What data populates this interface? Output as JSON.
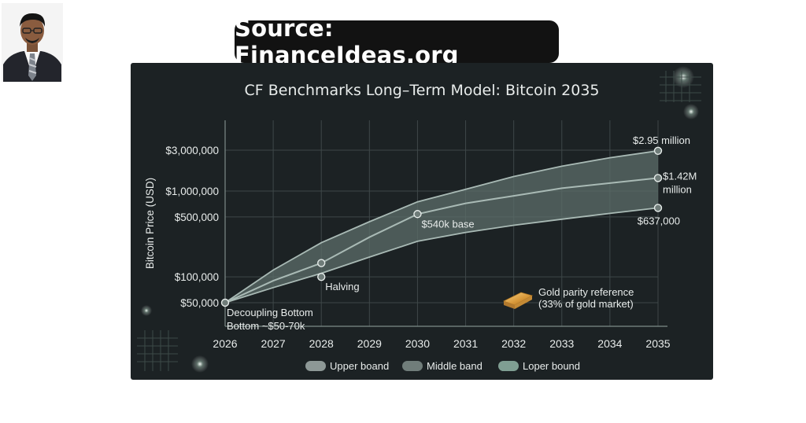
{
  "header": {
    "source_label": "Source: FinanceIdeas.org"
  },
  "chart_data": {
    "type": "area",
    "title": "CF Benchmarks Long–Term Model: Bitcoin 2035",
    "xlabel": "",
    "ylabel": "Bitcoin Price (USD)",
    "y_scale": "log",
    "x": [
      2026,
      2027,
      2028,
      2029,
      2030,
      2031,
      2032,
      2033,
      2034,
      2035
    ],
    "x_tick_labels": [
      "2026",
      "2027",
      "2028",
      "2029",
      "2030",
      "2031",
      "2032",
      "2033",
      "2034",
      "2035"
    ],
    "y_ticks": [
      50000,
      100000,
      500000,
      1000000,
      3000000
    ],
    "y_tick_labels": [
      "$50,000",
      "$100,000",
      "$500,000",
      "$1,000,000",
      "$3,000,000"
    ],
    "series": [
      {
        "name": "Upper boand",
        "values": [
          50000,
          120000,
          250000,
          440000,
          750000,
          1050000,
          1480000,
          1950000,
          2450000,
          2950000
        ]
      },
      {
        "name": "Middle band",
        "values": [
          50000,
          90000,
          145000,
          290000,
          540000,
          720000,
          880000,
          1080000,
          1240000,
          1420000
        ]
      },
      {
        "name": "Loper bound",
        "values": [
          50000,
          75000,
          110000,
          170000,
          260000,
          330000,
          400000,
          470000,
          550000,
          637000
        ]
      }
    ],
    "legend_position": "bottom",
    "grid": true,
    "colors": {
      "panel_bg": "#1c2224",
      "band_fill": "#5c6e6a",
      "line": "#a9bab5",
      "grid": "#3e4748",
      "text": "#e8eceb",
      "gold": "#d49a3c"
    },
    "annotations": [
      {
        "id": "start",
        "lines": [
          "Decoupling Bottom",
          "Bottom ~$50-70k"
        ],
        "x": 2026,
        "y": 50000
      },
      {
        "id": "halving",
        "lines": [
          "Halving"
        ],
        "x": 2028,
        "y": 100000
      },
      {
        "id": "halving-mid",
        "lines": [],
        "x": 2028,
        "y": 145000
      },
      {
        "id": "base",
        "lines": [
          "$540k base"
        ],
        "x": 2030,
        "y": 540000
      },
      {
        "id": "top",
        "lines": [
          "$2.95 million"
        ],
        "x": 2035,
        "y": 2950000
      },
      {
        "id": "mid",
        "lines": [
          "$1.42M",
          "million"
        ],
        "x": 2035,
        "y": 1420000
      },
      {
        "id": "low",
        "lines": [
          "$637,000"
        ],
        "x": 2035,
        "y": 637000
      }
    ],
    "gold_reference": {
      "icon": "gold-bar-icon",
      "lines": [
        "Gold parity reference",
        "(33% of gold market)"
      ]
    }
  }
}
